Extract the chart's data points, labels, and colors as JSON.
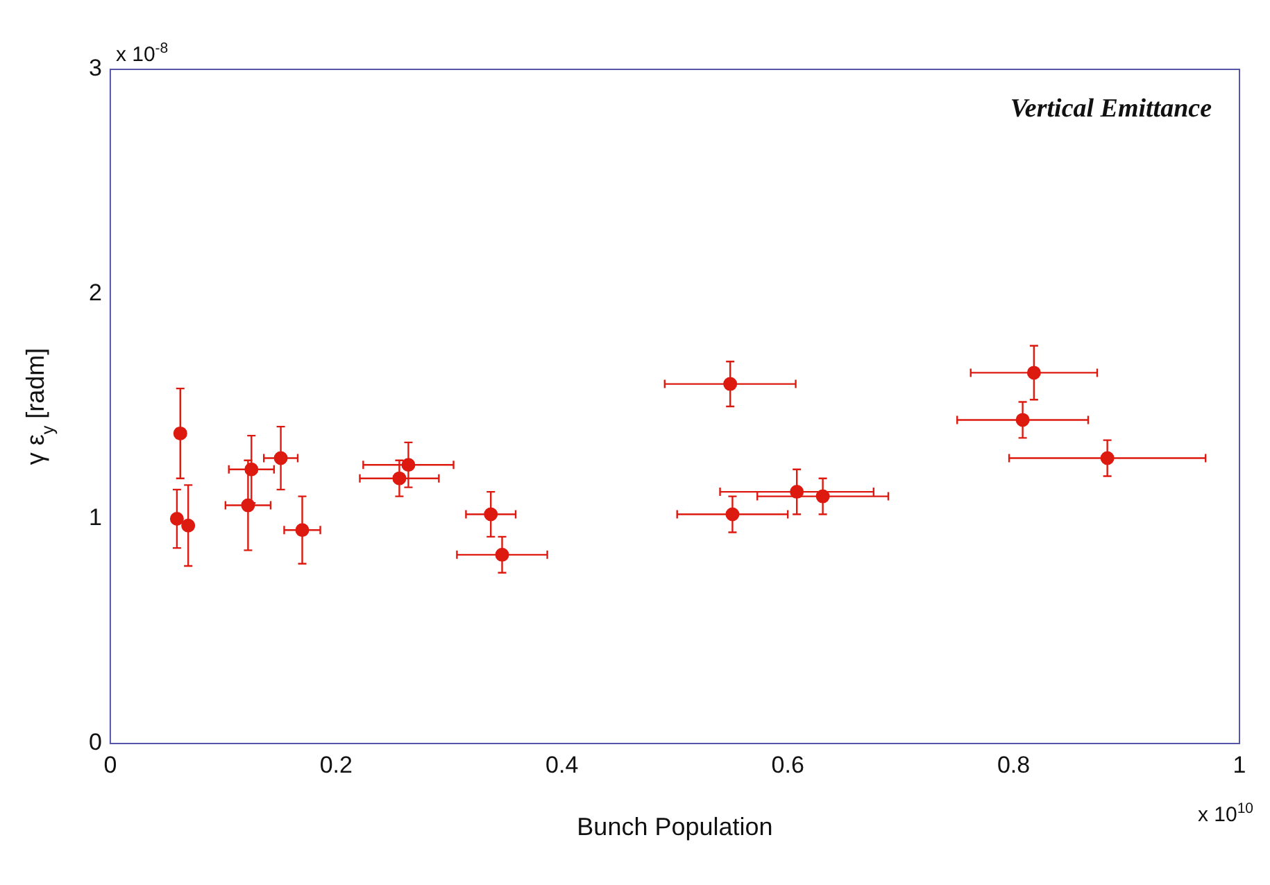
{
  "chart_data": {
    "type": "scatter",
    "ylabel": "γ ε$_{y}$ [radm]",
    "xlabel": "Bunch Population",
    "annotations": [
      "x 10$^{-8}$",
      "x 10$^{10}$",
      "Vertical Emittance"
    ],
    "x": [
      0.062,
      0.059,
      0.069,
      0.122,
      0.125,
      0.151,
      0.17,
      0.256,
      0.264,
      0.337,
      0.347,
      0.549,
      0.551,
      0.608,
      0.631,
      0.818,
      0.808,
      0.883
    ],
    "values": [
      1.38,
      1.0,
      0.97,
      1.06,
      1.22,
      1.27,
      0.95,
      1.18,
      1.24,
      1.02,
      0.84,
      1.6,
      1.02,
      1.12,
      1.1,
      1.65,
      1.44,
      1.27
    ],
    "errors": [
      0.2,
      0.13,
      0.18,
      0.2,
      0.15,
      0.14,
      0.15,
      0.08,
      0.1,
      0.1,
      0.08,
      0.1,
      0.08,
      0.1,
      0.08,
      0.12,
      0.08,
      0.08
    ],
    "xerrors": [
      null,
      null,
      null,
      0.02,
      0.02,
      0.015,
      0.016,
      0.035,
      0.04,
      0.022,
      0.04,
      0.058,
      0.049,
      0.068,
      0.058,
      0.056,
      0.058,
      0.087
    ],
    "color": "#dd1a10",
    "marker": "circle",
    "grid": false,
    "legend": false,
    "xlim": [
      0,
      1
    ],
    "xticks": [
      0,
      0.2,
      0.4,
      0.6,
      0.8,
      1
    ],
    "ylim": [
      0,
      3
    ],
    "yticks": [
      0,
      1,
      2,
      3
    ]
  }
}
